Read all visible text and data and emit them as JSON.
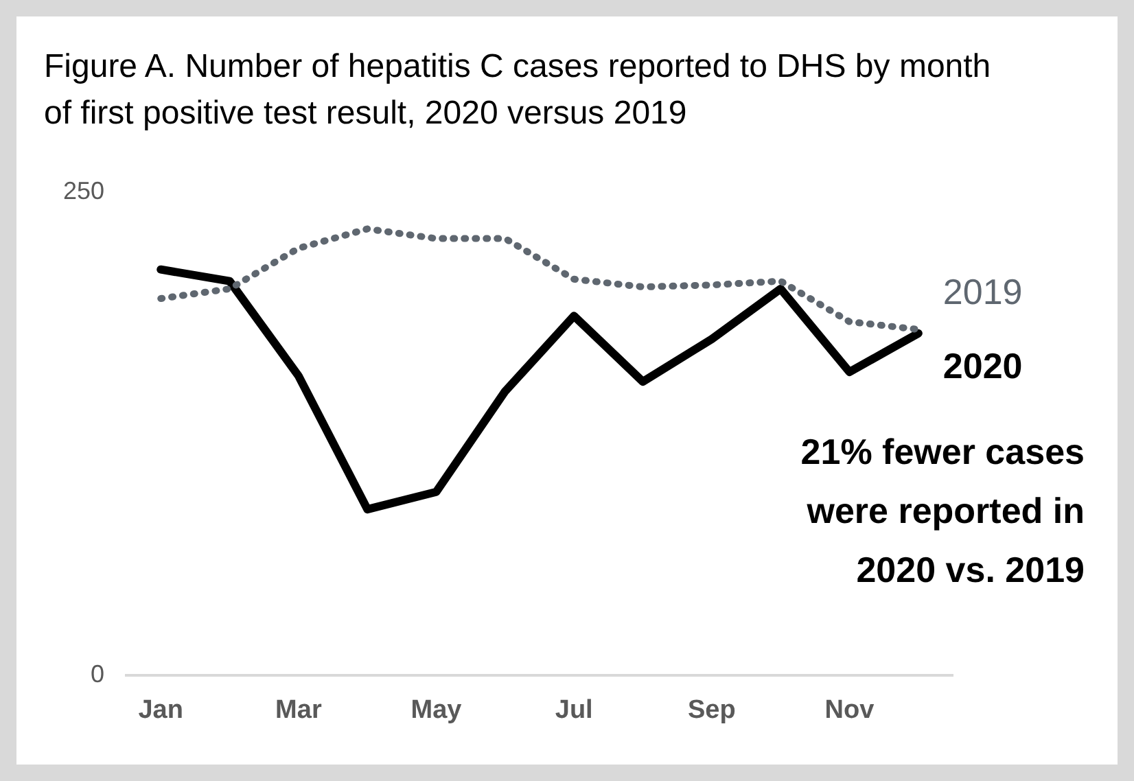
{
  "chart_data": {
    "type": "line",
    "title": "Figure A. Number of hepatitis C cases reported to DHS by month of first positive test result, 2020 versus 2019",
    "categories": [
      "Jan",
      null,
      "Mar",
      null,
      "May",
      null,
      "Jul",
      null,
      "Sep",
      null,
      "Nov",
      null
    ],
    "series": [
      {
        "name": "2019",
        "color": "#5f6770",
        "line_style": "dotted",
        "values": [
          195,
          200,
          221,
          231,
          226,
          226,
          205,
          201,
          202,
          204,
          183,
          179
        ]
      },
      {
        "name": "2020",
        "color": "#000000",
        "line_style": "solid",
        "values": [
          210,
          204,
          155,
          86,
          95,
          147,
          186,
          152,
          174,
          200,
          157,
          177
        ]
      }
    ],
    "ylim": [
      0,
      250
    ],
    "yticks": [
      0,
      250
    ],
    "grid": false,
    "legend": false,
    "marker": "none",
    "annotations": [
      "21% fewer cases were reported in 2020 vs. 2019"
    ]
  }
}
